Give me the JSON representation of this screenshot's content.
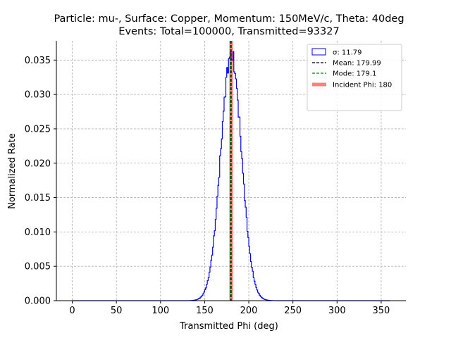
{
  "chart_data": {
    "type": "histogram",
    "title_line1": "Particle: mu-, Surface: Copper, Momentum: 150MeV/c, Theta: 40deg",
    "title_line2": "Events: Total=100000, Transmitted=93327",
    "xlabel": "Transmitted Phi (deg)",
    "ylabel": "Normalized Rate",
    "xlim": [
      -18,
      378
    ],
    "ylim": [
      0,
      0.0378
    ],
    "x_ticks": [
      0,
      50,
      100,
      150,
      200,
      250,
      300,
      350
    ],
    "x_tick_labels": [
      "0",
      "50",
      "100",
      "150",
      "200",
      "250",
      "300",
      "350"
    ],
    "y_ticks": [
      0.0,
      0.005,
      0.01,
      0.015,
      0.02,
      0.025,
      0.03,
      0.035
    ],
    "y_tick_labels": [
      "0.000",
      "0.005",
      "0.010",
      "0.015",
      "0.020",
      "0.025",
      "0.030",
      "0.035"
    ],
    "grid": true,
    "legend_position": "top-right",
    "histogram": {
      "label": "σ: 11.79",
      "color": "#0000ff",
      "bin_width": 1,
      "range": [
        0,
        360
      ],
      "center": 180,
      "sigma": 11.79,
      "peak": 0.0357
    },
    "vlines": [
      {
        "label": "Mean: 179.99",
        "x": 179.99,
        "color": "#000000",
        "style": "dashed"
      },
      {
        "label": "Mode: 179.1",
        "x": 179.1,
        "color": "#008000",
        "style": "dashed"
      },
      {
        "label": "Incident Phi: 180",
        "x": 180,
        "color": "#ff0000",
        "style": "solid",
        "alpha": 0.5
      }
    ]
  }
}
